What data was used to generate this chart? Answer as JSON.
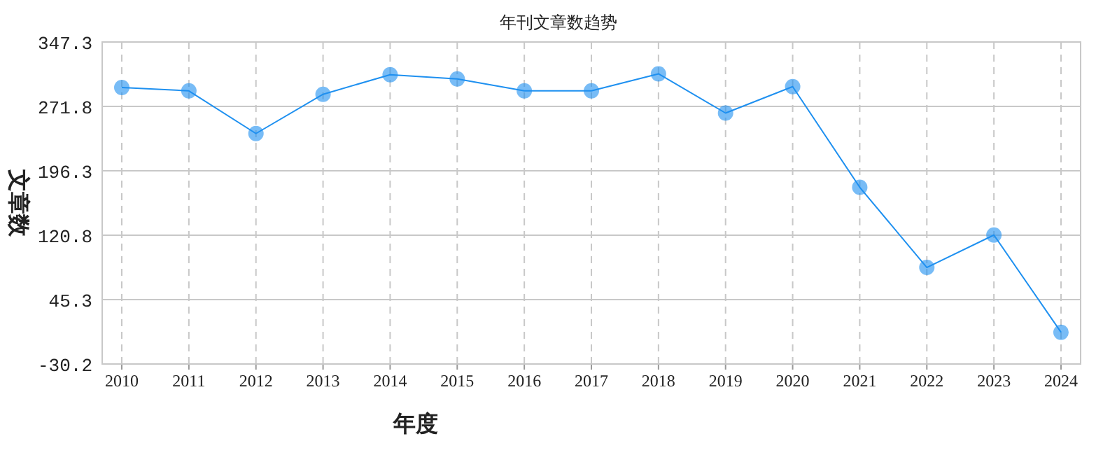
{
  "chart_data": {
    "type": "line",
    "title": "年刊文章数趋势",
    "xlabel": "年度",
    "ylabel": "文章数",
    "categories": [
      "2010",
      "2011",
      "2012",
      "2013",
      "2014",
      "2015",
      "2016",
      "2017",
      "2018",
      "2019",
      "2020",
      "2021",
      "2022",
      "2023",
      "2024"
    ],
    "series": [
      {
        "color": "#1e90f0",
        "values": [
          294,
          290,
          240,
          286,
          309,
          304,
          290,
          290,
          310,
          264,
          295,
          177,
          83,
          121,
          7
        ]
      }
    ],
    "ylim": [
      -30.2,
      347.3
    ],
    "yticks": [
      -30.2,
      45.3,
      120.8,
      196.3,
      271.8,
      347.3
    ],
    "grid": true,
    "marker": "circle"
  }
}
